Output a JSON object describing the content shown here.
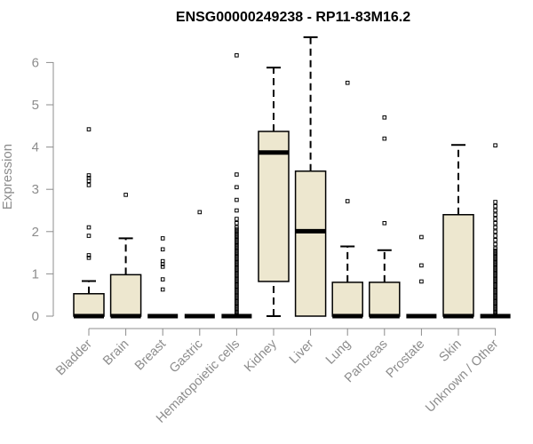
{
  "chart_data": {
    "type": "box",
    "title": "ENSG00000249238 - RP11-83M16.2",
    "xlabel": "",
    "ylabel": "Expression",
    "ylim": [
      0,
      6.6
    ],
    "yticks": [
      0,
      1,
      2,
      3,
      4,
      5,
      6
    ],
    "grid": false,
    "legend": "none",
    "colors": {
      "box_fill": "#ede7cf",
      "box_stroke": "#000000",
      "axis": "#8c8c8c",
      "tick_text": "#8c8c8c"
    },
    "categories": [
      "Bladder",
      "Brain",
      "Breast",
      "Gastric",
      "Hematopoietic cells",
      "Kidney",
      "Liver",
      "Lung",
      "Pancreas",
      "Prostate",
      "Skin",
      "Unknown / Other"
    ],
    "boxes": [
      {
        "category": "Bladder",
        "whisker_low": 0,
        "q1": 0,
        "median": 0,
        "q3": 0.53,
        "whisker_high": 0.83,
        "outliers": [
          1.38,
          1.44,
          1.9,
          2.1,
          3.1,
          3.2,
          3.27,
          3.33,
          4.42
        ]
      },
      {
        "category": "Brain",
        "whisker_low": 0,
        "q1": 0,
        "median": 0,
        "q3": 0.98,
        "whisker_high": 1.84,
        "outliers": [
          2.87
        ]
      },
      {
        "category": "Breast",
        "whisker_low": 0,
        "q1": 0,
        "median": 0,
        "q3": 0,
        "whisker_high": 0,
        "outliers": [
          0.63,
          0.87,
          1.17,
          1.23,
          1.3,
          1.58,
          1.84
        ]
      },
      {
        "category": "Gastric",
        "whisker_low": 0,
        "q1": 0,
        "median": 0,
        "q3": 0,
        "whisker_high": 0,
        "outliers": [
          2.46
        ]
      },
      {
        "category": "Hematopoietic cells",
        "whisker_low": 0,
        "q1": 0,
        "median": 0,
        "q3": 0,
        "whisker_high": 0,
        "outliers": [
          0.05,
          0.1,
          0.15,
          0.2,
          0.25,
          0.3,
          0.35,
          0.4,
          0.45,
          0.5,
          0.55,
          0.6,
          0.65,
          0.7,
          0.75,
          0.8,
          0.85,
          0.9,
          0.95,
          1.0,
          1.05,
          1.1,
          1.15,
          1.2,
          1.25,
          1.3,
          1.35,
          1.4,
          1.45,
          1.5,
          1.55,
          1.6,
          1.65,
          1.7,
          1.75,
          1.8,
          1.85,
          1.9,
          1.95,
          2.0,
          2.05,
          2.1,
          2.2,
          2.3,
          2.5,
          2.75,
          3.05,
          3.35,
          6.17
        ]
      },
      {
        "category": "Kidney",
        "whisker_low": 0,
        "q1": 0.82,
        "median": 3.87,
        "q3": 4.37,
        "whisker_high": 5.88,
        "outliers": []
      },
      {
        "category": "Liver",
        "whisker_low": 0,
        "q1": 0,
        "median": 2.01,
        "q3": 3.43,
        "whisker_high": 6.6,
        "outliers": []
      },
      {
        "category": "Lung",
        "whisker_low": 0,
        "q1": 0,
        "median": 0,
        "q3": 0.8,
        "whisker_high": 1.65,
        "outliers": [
          2.72,
          5.52
        ]
      },
      {
        "category": "Pancreas",
        "whisker_low": 0,
        "q1": 0,
        "median": 0,
        "q3": 0.8,
        "whisker_high": 1.56,
        "outliers": [
          2.2,
          4.2,
          4.7
        ]
      },
      {
        "category": "Prostate",
        "whisker_low": 0,
        "q1": 0,
        "median": 0,
        "q3": 0,
        "whisker_high": 0,
        "outliers": [
          0.82,
          1.2,
          1.87
        ]
      },
      {
        "category": "Skin",
        "whisker_low": 0,
        "q1": 0,
        "median": 0,
        "q3": 2.4,
        "whisker_high": 4.05,
        "outliers": []
      },
      {
        "category": "Unknown / Other",
        "whisker_low": 0,
        "q1": 0,
        "median": 0,
        "q3": 0,
        "whisker_high": 0,
        "outliers": [
          0.05,
          0.1,
          0.15,
          0.2,
          0.25,
          0.3,
          0.35,
          0.4,
          0.45,
          0.5,
          0.55,
          0.6,
          0.65,
          0.7,
          0.75,
          0.8,
          0.85,
          0.9,
          0.95,
          1.0,
          1.05,
          1.1,
          1.15,
          1.2,
          1.25,
          1.3,
          1.35,
          1.4,
          1.45,
          1.5,
          1.55,
          1.6,
          1.7,
          1.8,
          1.9,
          2.0,
          2.1,
          2.2,
          2.3,
          2.4,
          2.5,
          2.6,
          2.7,
          4.04
        ]
      }
    ]
  }
}
